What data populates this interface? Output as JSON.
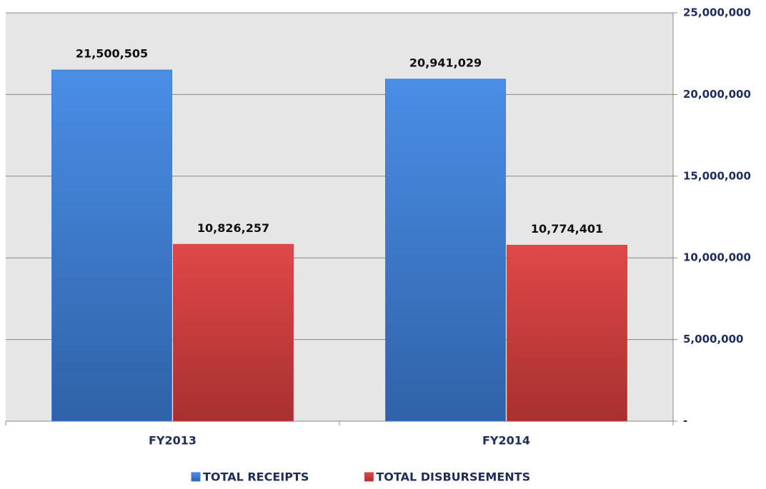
{
  "chart_data": {
    "type": "bar",
    "categories": [
      "FY2013",
      "FY2014"
    ],
    "series": [
      {
        "name": "TOTAL RECEIPTS",
        "color": "#3c7fd6",
        "values": [
          21500505,
          20941029
        ],
        "value_labels": [
          "21,500,505",
          "20,941,029"
        ]
      },
      {
        "name": "TOTAL DISBURSEMENTS",
        "color": "#d64040",
        "values": [
          10826257,
          10774401
        ],
        "value_labels": [
          "10,826,257",
          "10,774,401"
        ]
      }
    ],
    "ylim": [
      0,
      25000000
    ],
    "yticks": [
      {
        "value": 0,
        "label": "-"
      },
      {
        "value": 5000000,
        "label": "5,000,000"
      },
      {
        "value": 10000000,
        "label": "10,000,000"
      },
      {
        "value": 15000000,
        "label": "15,000,000"
      },
      {
        "value": 20000000,
        "label": "20,000,000"
      },
      {
        "value": 25000000,
        "label": "25,000,000"
      }
    ],
    "grid": true,
    "legend": "bottom"
  }
}
